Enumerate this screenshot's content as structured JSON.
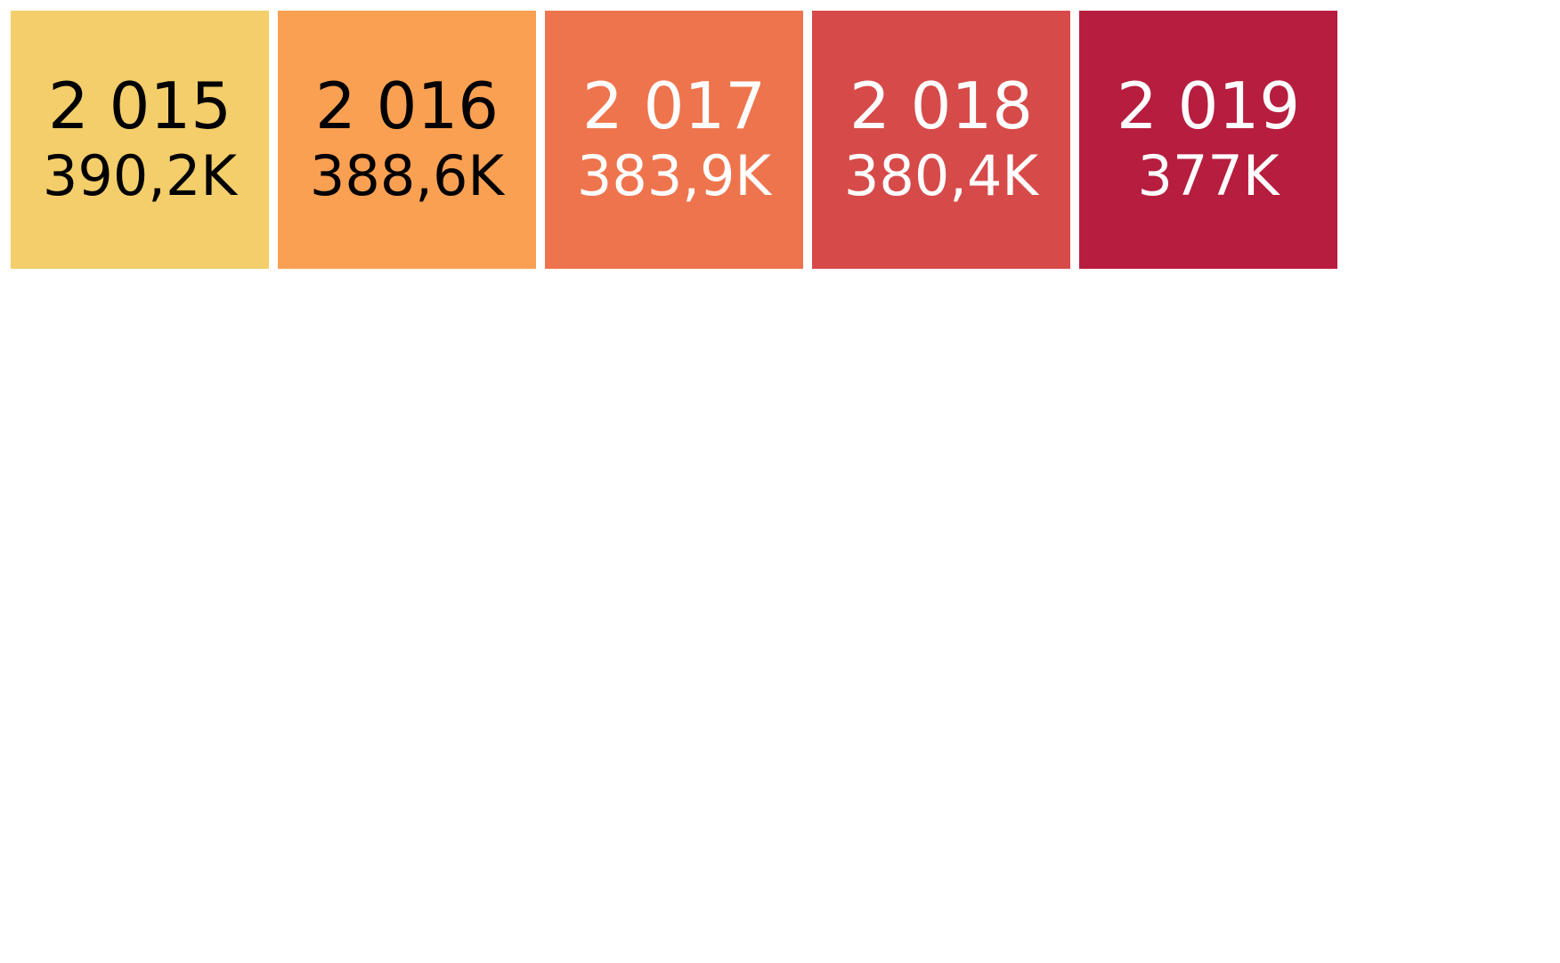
{
  "cards": [
    {
      "year": "2 015",
      "value": "390,2K",
      "bg": "#F3CE6A",
      "fg": "#000000"
    },
    {
      "year": "2 016",
      "value": "388,6K",
      "bg": "#FAA052",
      "fg": "#000000"
    },
    {
      "year": "2 017",
      "value": "383,9K",
      "bg": "#EE744D",
      "fg": "#ffffff"
    },
    {
      "year": "2 018",
      "value": "380,4K",
      "bg": "#D64B49",
      "fg": "#ffffff"
    },
    {
      "year": "2 019",
      "value": "377K",
      "bg": "#B71D3E",
      "fg": "#ffffff"
    }
  ]
}
